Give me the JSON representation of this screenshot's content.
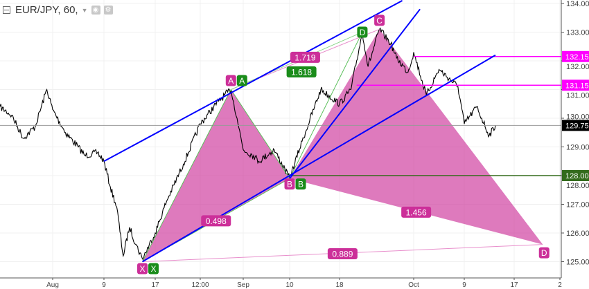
{
  "header": {
    "symbol": "EUR/JPY, 60,",
    "icons": [
      "collapse-icon",
      "dropdown-caret-icon",
      "eye-icon",
      "gear-icon"
    ]
  },
  "chart_data": {
    "type": "line",
    "title": "EUR/JPY, 60,",
    "ylim": [
      124.45,
      134.1
    ],
    "y_ticks": [
      "125.00",
      "126.00",
      "127.00",
      "128.00",
      "129.00",
      "130.00",
      "131.00",
      "132.00",
      "133.00",
      "134.00"
    ],
    "x_ticks": [
      {
        "label": "Aug",
        "date": "Aug 1"
      },
      {
        "label": "9",
        "date": "Aug 9"
      },
      {
        "label": "17",
        "date": "Aug 17"
      },
      {
        "label": "12:00",
        "date": "Aug 25"
      },
      {
        "label": "Sep",
        "date": "Sep 1"
      },
      {
        "label": "10",
        "date": "Sep 10"
      },
      {
        "label": "18",
        "date": "Sep 18"
      },
      {
        "label": "Oct",
        "date": "Oct 1"
      },
      {
        "label": "9",
        "date": "Oct 9"
      },
      {
        "label": "17",
        "date": "Oct 17"
      },
      {
        "label": "2",
        "date": "Oct 25"
      }
    ],
    "grid": true,
    "price": [
      [
        "Jul 23",
        130.4
      ],
      [
        "Jul 25",
        130.1
      ],
      [
        "Jul 27",
        129.3
      ],
      [
        "Jul 29",
        129.7
      ],
      [
        "Jul 31",
        131.0
      ],
      [
        "Aug 1",
        130.3
      ],
      [
        "Aug 3",
        129.5
      ],
      [
        "Aug 5",
        129.0
      ],
      [
        "Aug 6",
        128.7
      ],
      [
        "Aug 8",
        128.8
      ],
      [
        "Aug 9",
        128.5
      ],
      [
        "Aug 10",
        127.6
      ],
      [
        "Aug 11",
        126.9
      ],
      [
        "Aug 12",
        125.2
      ],
      [
        "Aug 13",
        126.2
      ],
      [
        "Aug 14",
        125.6
      ],
      [
        "Aug 15",
        125.1
      ],
      [
        "Aug 17",
        126.0
      ],
      [
        "Aug 19",
        127.1
      ],
      [
        "Aug 22",
        128.4
      ],
      [
        "Aug 25",
        129.8
      ],
      [
        "Aug 28",
        130.6
      ],
      [
        "Aug 30",
        131.0
      ],
      [
        "Aug 31",
        130.0
      ],
      [
        "Sep 1",
        128.9
      ],
      [
        "Sep 3",
        128.7
      ],
      [
        "Sep 4",
        128.5
      ],
      [
        "Sep 7",
        128.9
      ],
      [
        "Sep 10",
        127.9
      ],
      [
        "Sep 12",
        129.2
      ],
      [
        "Sep 14",
        130.4
      ],
      [
        "Sep 15",
        131.0
      ],
      [
        "Sep 18",
        130.5
      ],
      [
        "Sep 20",
        131.0
      ],
      [
        "Sep 22",
        133.0
      ],
      [
        "Sep 23",
        131.8
      ],
      [
        "Sep 25",
        133.1
      ],
      [
        "Sep 27",
        132.6
      ],
      [
        "Sep 28",
        132.1
      ],
      [
        "Sep 30",
        131.6
      ],
      [
        "Oct 1",
        132.3
      ],
      [
        "Oct 3",
        130.8
      ],
      [
        "Oct 5",
        131.7
      ],
      [
        "Oct 8",
        131.1
      ],
      [
        "Oct 9",
        129.8
      ],
      [
        "Oct 11",
        130.4
      ],
      [
        "Oct 13",
        129.4
      ],
      [
        "Oct 14",
        129.75
      ]
    ],
    "last_price": {
      "value": 129.75,
      "label": "129.75",
      "color": "#000000"
    },
    "horizontal_levels": [
      {
        "value": 132.15,
        "label": "132.15",
        "from": "Oct 1",
        "color": "#ff00ff"
      },
      {
        "value": 131.15,
        "label": "131.15",
        "from": "Sep 21",
        "color": "#ff00ff"
      },
      {
        "value": 128.0,
        "label": "128.00",
        "from": "Sep 10",
        "color": "#336b1c"
      }
    ],
    "trendlines": [
      {
        "from": [
          "Aug 9",
          128.5
        ],
        "to": [
          "Sep 29",
          134.1
        ],
        "color": "#0000ff"
      },
      {
        "from": [
          "Aug 15",
          125.0
        ],
        "to": [
          "Oct 14",
          132.2
        ],
        "color": "#0000ff"
      },
      {
        "from": [
          "Sep 10",
          127.9
        ],
        "to": [
          "Oct 2",
          133.8
        ],
        "color": "#0000ff"
      }
    ],
    "pattern_pink": {
      "color": "#cc2f99",
      "points": {
        "X": [
          "Aug 15",
          125.0
        ],
        "A": [
          "Aug 30",
          131.0
        ],
        "B": [
          "Sep 10",
          127.9
        ],
        "C": [
          "Sep 25",
          133.1
        ],
        "D": [
          "Oct 22",
          125.6
        ]
      },
      "ratios": [
        {
          "from": "X",
          "to": "B",
          "label": "0.498"
        },
        {
          "from": "A",
          "to": "C",
          "label": "1.719"
        },
        {
          "from": "B",
          "to": "D",
          "label": "1.456"
        },
        {
          "from": "X",
          "to": "D",
          "label": "0.889"
        }
      ]
    },
    "pattern_green": {
      "color": "#1a8c1a",
      "points": {
        "X": [
          "Aug 15",
          125.0
        ],
        "A": [
          "Aug 30",
          131.0
        ],
        "B": [
          "Sep 10",
          127.9
        ],
        "D": [
          "Sep 22",
          133.0
        ]
      },
      "ratios": [
        {
          "from": "A",
          "to": "D",
          "label": "1.618"
        }
      ]
    }
  }
}
